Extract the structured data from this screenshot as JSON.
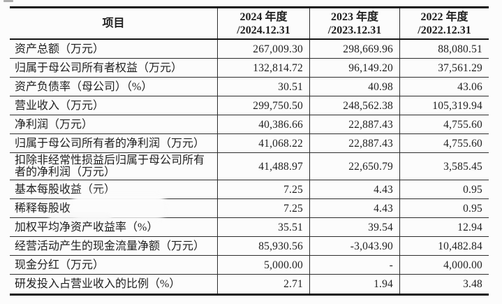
{
  "colors": {
    "text": "#1f1f1f",
    "line_thin": "#2e2e2e",
    "line_thick": "#141414",
    "background": "#fcfcfc"
  },
  "table": {
    "header": {
      "item": "项目",
      "periods": [
        {
          "line1": "2024 年度",
          "line2": "/2024.12.31"
        },
        {
          "line1": "2023 年度",
          "line2": "/2023.12.31"
        },
        {
          "line1": "2022 年度",
          "line2": "/2022.12.31"
        }
      ]
    },
    "rows": [
      {
        "label": "资产总额（万元）",
        "values": [
          "267,009.30",
          "298,669.96",
          "88,080.51"
        ]
      },
      {
        "label": "归属于母公司所有者权益（万元）",
        "values": [
          "132,814.72",
          "96,149.20",
          "37,561.29"
        ]
      },
      {
        "label": "资产负债率（母公司）（%）",
        "values": [
          "30.51",
          "40.98",
          "43.06"
        ]
      },
      {
        "label": "营业收入（万元）",
        "values": [
          "299,750.50",
          "248,562.38",
          "105,319.94"
        ]
      },
      {
        "label": "净利润（万元）",
        "values": [
          "40,386.66",
          "22,887.43",
          "4,755.60"
        ]
      },
      {
        "label": "归属于母公司所有者的净利润（万元）",
        "values": [
          "41,068.22",
          "22,887.43",
          "4,755.60"
        ]
      },
      {
        "label": "扣除非经常性损益后归属于母公司所有者的净利润（万元）",
        "values": [
          "41,488.97",
          "22,650.79",
          "3,585.45"
        ]
      },
      {
        "label": "基本每股收益（元）",
        "values": [
          "7.25",
          "4.43",
          "0.95"
        ]
      },
      {
        "label": "稀释每股收",
        "redacted": true,
        "values": [
          "7.25",
          "4.43",
          "0.95"
        ]
      },
      {
        "label": "加权平均净资产收益率（%）",
        "values": [
          "35.51",
          "39.54",
          "12.94"
        ]
      },
      {
        "label": "经营活动产生的现金流量净额（万元）",
        "values": [
          "85,930.56",
          "-3,043.90",
          "10,482.84"
        ]
      },
      {
        "label": "现金分红（万元）",
        "values": [
          "5,000.00",
          "-",
          "4,000.00"
        ]
      },
      {
        "label": "研发投入占营业收入的比例（%）",
        "values": [
          "2.71",
          "1.94",
          "3.48"
        ]
      }
    ]
  }
}
